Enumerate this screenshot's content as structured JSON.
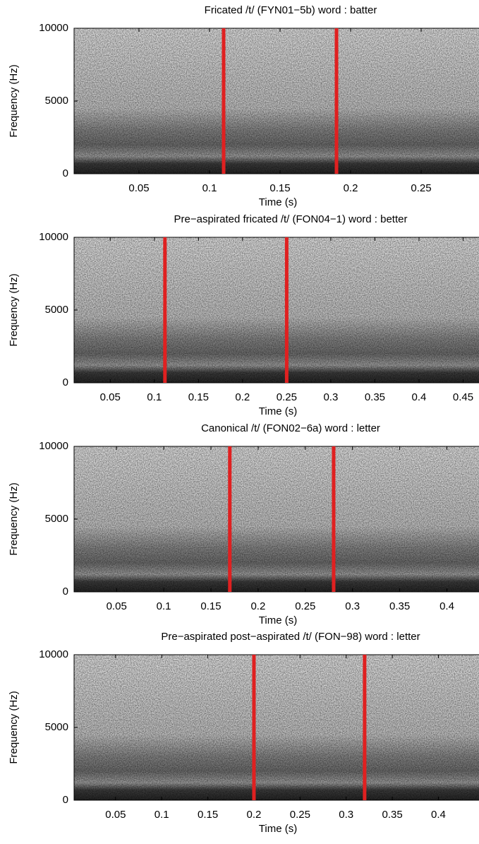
{
  "chart_data": [
    {
      "type": "spectrogram",
      "title": "Fricated /t/ (FYN01−5b) word : batter",
      "xlabel": "Time (s)",
      "ylabel": "Frequency (Hz)",
      "xlim": [
        0.004,
        0.291
      ],
      "ylim": [
        0,
        10000
      ],
      "xticks": [
        0.05,
        0.1,
        0.15,
        0.2,
        0.25
      ],
      "yticks": [
        0,
        5000,
        10000
      ],
      "markers": [
        0.11,
        0.19
      ],
      "marker_color": "#e02020"
    },
    {
      "type": "spectrogram",
      "title": "Pre−aspirated fricated /t/ (FON04−1) word : better",
      "xlabel": "Time (s)",
      "ylabel": "Frequency (Hz)",
      "xlim": [
        0.009,
        0.468
      ],
      "ylim": [
        0,
        10000
      ],
      "xticks": [
        0.05,
        0.1,
        0.15,
        0.2,
        0.25,
        0.3,
        0.35,
        0.4,
        0.45
      ],
      "yticks": [
        0,
        5000,
        10000
      ],
      "markers": [
        0.112,
        0.25
      ],
      "marker_color": "#e02020"
    },
    {
      "type": "spectrogram",
      "title": "Canonical /t/ (FON02−6a) word : letter",
      "xlabel": "Time (s)",
      "ylabel": "Frequency (Hz)",
      "xlim": [
        0.005,
        0.434
      ],
      "ylim": [
        0,
        10000
      ],
      "xticks": [
        0.05,
        0.1,
        0.15,
        0.2,
        0.25,
        0.3,
        0.35,
        0.4
      ],
      "yticks": [
        0,
        5000,
        10000
      ],
      "markers": [
        0.17,
        0.28
      ],
      "marker_color": "#e02020"
    },
    {
      "type": "spectrogram",
      "title": "Pre−aspirated post−aspirated /t/ (FON−98) word : letter",
      "xlabel": "Time (s)",
      "ylabel": "Frequency (Hz)",
      "xlim": [
        0.005,
        0.444
      ],
      "ylim": [
        0,
        10000
      ],
      "xticks": [
        0.05,
        0.1,
        0.15,
        0.2,
        0.25,
        0.3,
        0.35,
        0.4
      ],
      "yticks": [
        0,
        5000,
        10000
      ],
      "markers": [
        0.2,
        0.32
      ],
      "marker_color": "#e02020"
    }
  ]
}
